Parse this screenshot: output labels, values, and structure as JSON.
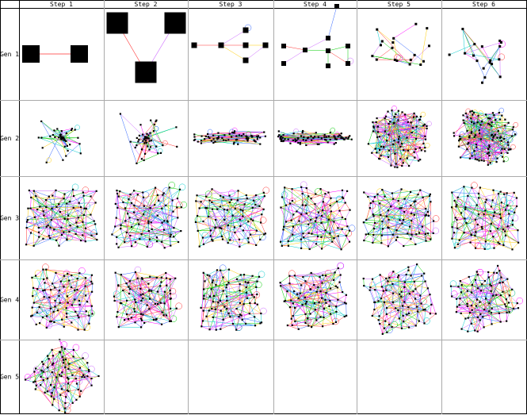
{
  "columns": [
    "Step 1",
    "Step 2",
    "Step 3",
    "Step 4",
    "Step 5",
    "Step 6"
  ],
  "rows": [
    "Gen 1",
    "Gen 2",
    "Gen 3",
    "Gen 4",
    "Gen 5"
  ],
  "filled_cells_per_row": [
    6,
    6,
    6,
    6,
    1
  ],
  "palette": {
    "border": "#000000",
    "inner_grid": "#aaaaaa",
    "node": "#000000",
    "edges": [
      "#00cc00",
      "#ff00ff",
      "#00cccc",
      "#ffcc00",
      "#ff3333",
      "#3366ff",
      "#cc66ff"
    ]
  }
}
